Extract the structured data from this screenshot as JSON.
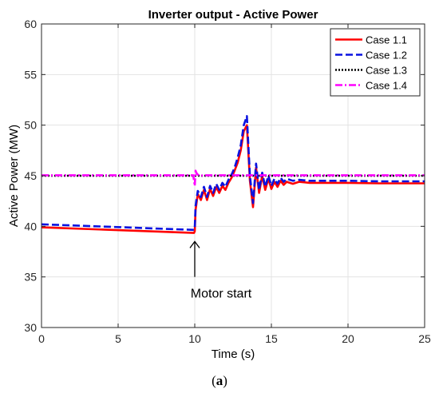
{
  "figure": {
    "caption_open": "(",
    "caption_letter": "a",
    "caption_close": ")"
  },
  "chart_data": {
    "type": "line",
    "title": "Inverter output - Active Power",
    "xlabel": "Time (s)",
    "ylabel": "Active Power (MW)",
    "xlim": [
      0,
      25
    ],
    "ylim": [
      30,
      60
    ],
    "xticks": [
      0,
      5,
      10,
      15,
      20,
      25
    ],
    "yticks": [
      30,
      35,
      40,
      45,
      50,
      55,
      60
    ],
    "xtick_labels": [
      "0",
      "5",
      "10",
      "15",
      "20",
      "25"
    ],
    "ytick_labels": [
      "30",
      "35",
      "40",
      "45",
      "50",
      "55",
      "60"
    ],
    "grid": true,
    "legend_position": "top-right",
    "annotation": {
      "text": "Motor start",
      "x": 10.0,
      "arrow_tip_y": 38.5,
      "arrow_tail_y": 35.0
    },
    "series": [
      {
        "name": "Case 1.1",
        "color": "#ff0000",
        "style": "solid",
        "x": [
          0,
          9.95,
          10.0,
          10.05,
          10.2,
          10.4,
          10.6,
          10.8,
          11.0,
          11.2,
          11.4,
          11.6,
          11.8,
          12.0,
          12.2,
          12.4,
          12.6,
          12.8,
          13.0,
          13.2,
          13.4,
          13.6,
          13.8,
          14.0,
          14.2,
          14.4,
          14.6,
          14.8,
          15.0,
          15.2,
          15.4,
          15.6,
          15.8,
          16.0,
          16.4,
          16.8,
          17.5,
          18.5,
          20,
          22,
          25
        ],
        "y": [
          39.9,
          39.35,
          39.5,
          41.6,
          43.2,
          42.6,
          43.6,
          42.6,
          43.7,
          43.0,
          43.9,
          43.3,
          44.0,
          43.6,
          44.3,
          44.8,
          45.5,
          46.3,
          47.5,
          49.4,
          50.0,
          44.5,
          41.9,
          45.8,
          43.3,
          45.0,
          43.6,
          44.7,
          43.7,
          44.4,
          43.9,
          44.5,
          44.1,
          44.4,
          44.2,
          44.4,
          44.3,
          44.3,
          44.3,
          44.25,
          44.25
        ]
      },
      {
        "name": "Case 1.2",
        "color": "#0a12e0",
        "style": "dashed",
        "x": [
          0,
          9.95,
          10.0,
          10.05,
          10.2,
          10.4,
          10.6,
          10.8,
          11.0,
          11.2,
          11.4,
          11.6,
          11.8,
          12.0,
          12.2,
          12.4,
          12.6,
          12.8,
          13.0,
          13.2,
          13.4,
          13.6,
          13.8,
          14.0,
          14.2,
          14.4,
          14.6,
          14.8,
          15.0,
          15.2,
          15.4,
          15.6,
          15.8,
          16.0,
          16.4,
          16.8,
          17.5,
          18.5,
          20,
          22,
          25
        ],
        "y": [
          40.2,
          39.65,
          39.8,
          42.0,
          43.5,
          42.9,
          43.9,
          42.9,
          44.0,
          43.3,
          44.2,
          43.6,
          44.3,
          43.9,
          44.6,
          45.1,
          45.8,
          46.8,
          48.0,
          50.0,
          50.9,
          45.0,
          42.3,
          46.2,
          43.6,
          45.3,
          43.9,
          45.0,
          44.0,
          44.7,
          44.2,
          44.8,
          44.4,
          44.7,
          44.5,
          44.6,
          44.5,
          44.5,
          44.5,
          44.45,
          44.45
        ]
      },
      {
        "name": "Case 1.3",
        "color": "#000000",
        "style": "dotted",
        "x": [
          0,
          25
        ],
        "y": [
          45.0,
          45.0
        ]
      },
      {
        "name": "Case 1.4",
        "color": "#ff00ff",
        "style": "dashdot",
        "x": [
          0,
          9.9,
          10.0,
          10.05,
          10.1,
          10.2,
          10.35,
          10.6,
          25
        ],
        "y": [
          45.05,
          45.05,
          44.0,
          45.5,
          45.3,
          45.1,
          45.0,
          45.05,
          45.05
        ]
      }
    ]
  }
}
